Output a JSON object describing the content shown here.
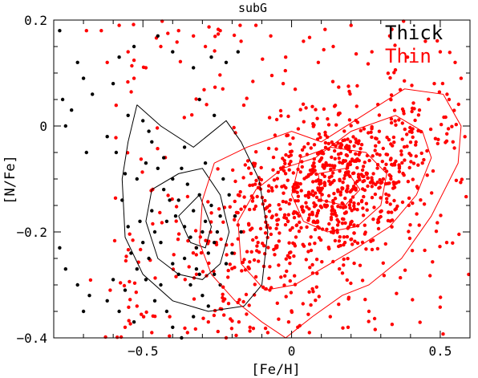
{
  "chart_data": {
    "type": "scatter",
    "title": "subG",
    "xlabel": "[Fe/H]",
    "ylabel": "[N/Fe]",
    "xlim": [
      -0.8,
      0.6
    ],
    "ylim": [
      -0.4,
      0.2
    ],
    "x_ticks": [
      -0.5,
      0,
      0.5
    ],
    "x_tick_labels": [
      "−0.5",
      "0",
      "0.5"
    ],
    "y_ticks": [
      -0.4,
      -0.2,
      0,
      0.2
    ],
    "y_tick_labels": [
      "−0.4",
      "−0.2",
      "0",
      "0.2"
    ],
    "grid": false,
    "legend_position": "top-right",
    "series": [
      {
        "name": "Thick",
        "color": "#000000",
        "points": [
          [
            -0.78,
            0.18
          ],
          [
            -0.72,
            0.12
          ],
          [
            -0.7,
            0.09
          ],
          [
            -0.77,
            0.05
          ],
          [
            -0.74,
            0.03
          ],
          [
            -0.67,
            0.06
          ],
          [
            -0.76,
            0.0
          ],
          [
            -0.69,
            -0.05
          ],
          [
            -0.62,
            -0.02
          ],
          [
            -0.59,
            -0.05
          ],
          [
            -0.56,
            -0.09
          ],
          [
            -0.57,
            -0.14
          ],
          [
            -0.52,
            -0.1
          ],
          [
            -0.49,
            -0.07
          ],
          [
            -0.47,
            -0.03
          ],
          [
            -0.45,
            -0.08
          ],
          [
            -0.43,
            -0.12
          ],
          [
            -0.4,
            -0.1
          ],
          [
            -0.38,
            -0.14
          ],
          [
            -0.35,
            -0.11
          ],
          [
            -0.33,
            -0.16
          ],
          [
            -0.31,
            -0.13
          ],
          [
            -0.29,
            -0.18
          ],
          [
            -0.27,
            -0.15
          ],
          [
            -0.25,
            -0.2
          ],
          [
            -0.36,
            -0.19
          ],
          [
            -0.34,
            -0.21
          ],
          [
            -0.32,
            -0.23
          ],
          [
            -0.3,
            -0.2
          ],
          [
            -0.28,
            -0.24
          ],
          [
            -0.42,
            -0.18
          ],
          [
            -0.44,
            -0.22
          ],
          [
            -0.46,
            -0.2
          ],
          [
            -0.48,
            -0.25
          ],
          [
            -0.5,
            -0.22
          ],
          [
            -0.52,
            -0.27
          ],
          [
            -0.54,
            -0.24
          ],
          [
            -0.4,
            -0.26
          ],
          [
            -0.38,
            -0.28
          ],
          [
            -0.36,
            -0.25
          ],
          [
            -0.34,
            -0.3
          ],
          [
            -0.32,
            -0.27
          ],
          [
            -0.3,
            -0.32
          ],
          [
            -0.26,
            -0.28
          ],
          [
            -0.24,
            -0.3
          ],
          [
            -0.22,
            -0.26
          ],
          [
            -0.2,
            -0.24
          ],
          [
            -0.44,
            -0.3
          ],
          [
            -0.46,
            -0.33
          ],
          [
            -0.42,
            -0.35
          ],
          [
            -0.4,
            -0.38
          ],
          [
            -0.37,
            -0.4
          ],
          [
            -0.56,
            -0.31
          ],
          [
            -0.58,
            -0.35
          ],
          [
            -0.6,
            -0.29
          ],
          [
            -0.72,
            -0.3
          ],
          [
            -0.68,
            -0.32
          ],
          [
            -0.7,
            -0.35
          ],
          [
            -0.76,
            -0.27
          ],
          [
            -0.78,
            -0.23
          ],
          [
            -0.55,
            0.02
          ],
          [
            -0.5,
            0.01
          ],
          [
            -0.48,
            -0.01
          ],
          [
            -0.6,
            0.08
          ],
          [
            -0.58,
            0.13
          ],
          [
            -0.53,
            0.15
          ],
          [
            -0.45,
            0.17
          ],
          [
            -0.4,
            0.14
          ],
          [
            -0.33,
            0.11
          ],
          [
            -0.27,
            0.13
          ],
          [
            -0.22,
            0.12
          ],
          [
            -0.18,
            0.14
          ],
          [
            -0.31,
            0.05
          ],
          [
            -0.26,
            0.02
          ],
          [
            -0.36,
            -0.04
          ],
          [
            -0.29,
            -0.07
          ],
          [
            -0.23,
            -0.1
          ],
          [
            -0.21,
            -0.13
          ],
          [
            -0.19,
            -0.17
          ],
          [
            -0.17,
            -0.2
          ],
          [
            -0.41,
            -0.14
          ],
          [
            -0.39,
            -0.17
          ],
          [
            -0.47,
            -0.16
          ],
          [
            -0.51,
            -0.18
          ],
          [
            -0.55,
            -0.19
          ],
          [
            -0.26,
            -0.22
          ],
          [
            -0.24,
            -0.17
          ],
          [
            -0.31,
            -0.28
          ],
          [
            -0.28,
            -0.34
          ],
          [
            -0.33,
            -0.36
          ],
          [
            -0.49,
            -0.29
          ],
          [
            -0.53,
            -0.37
          ],
          [
            -0.62,
            -0.33
          ],
          [
            -0.43,
            -0.06
          ],
          [
            -0.37,
            -0.08
          ]
        ]
      },
      {
        "name": "Thin",
        "color": "#ff0000",
        "generated_count": 1050,
        "points": [
          [
            -0.69,
            0.18
          ],
          [
            -0.64,
            0.18
          ],
          [
            -0.58,
            0.19
          ],
          [
            -0.55,
            0.14
          ],
          [
            -0.62,
            0.12
          ],
          [
            -0.53,
            0.09
          ],
          [
            -0.49,
            0.11
          ],
          [
            -0.44,
            0.15
          ],
          [
            -0.38,
            0.18
          ],
          [
            -0.33,
            0.17
          ],
          [
            -0.29,
            0.15
          ],
          [
            -0.24,
            0.18
          ],
          [
            -0.17,
            0.16
          ],
          [
            -0.12,
            0.19
          ],
          [
            -0.07,
            0.17
          ],
          [
            -0.02,
            0.13
          ],
          [
            0.04,
            0.16
          ],
          [
            0.09,
            0.12
          ],
          [
            0.14,
            0.15
          ],
          [
            0.2,
            0.19
          ],
          [
            0.27,
            0.14
          ],
          [
            0.33,
            0.17
          ],
          [
            0.39,
            0.13
          ],
          [
            0.45,
            0.16
          ],
          [
            0.5,
            0.14
          ],
          [
            0.55,
            0.12
          ],
          [
            0.57,
            0.09
          ],
          [
            0.53,
            0.05
          ],
          [
            0.48,
            0.08
          ],
          [
            0.43,
            0.03
          ],
          [
            -0.61,
            -0.31
          ],
          [
            -0.56,
            -0.38
          ],
          [
            -0.52,
            -0.34
          ],
          [
            -0.47,
            -0.39
          ],
          [
            -0.41,
            -0.36
          ],
          [
            -0.35,
            -0.39
          ],
          [
            -0.28,
            -0.37
          ],
          [
            -0.22,
            -0.4
          ],
          [
            -0.14,
            -0.38
          ],
          [
            -0.08,
            -0.39
          ],
          [
            -0.01,
            -0.37
          ],
          [
            0.06,
            -0.39
          ],
          [
            0.13,
            -0.36
          ],
          [
            0.19,
            -0.38
          ],
          [
            0.26,
            -0.35
          ]
        ]
      }
    ],
    "contours": [
      {
        "series": "Thick",
        "color": "#000000",
        "levels": [
          [
            [
              -0.52,
              0.04
            ],
            [
              -0.44,
              0.0
            ],
            [
              -0.33,
              -0.04
            ],
            [
              -0.22,
              0.01
            ],
            [
              -0.17,
              -0.03
            ],
            [
              -0.11,
              -0.1
            ],
            [
              -0.08,
              -0.2
            ],
            [
              -0.1,
              -0.3
            ],
            [
              -0.16,
              -0.34
            ],
            [
              -0.28,
              -0.35
            ],
            [
              -0.4,
              -0.33
            ],
            [
              -0.5,
              -0.28
            ],
            [
              -0.56,
              -0.21
            ],
            [
              -0.57,
              -0.1
            ],
            [
              -0.55,
              -0.03
            ],
            [
              -0.52,
              0.04
            ]
          ],
          [
            [
              -0.47,
              -0.12
            ],
            [
              -0.38,
              -0.09
            ],
            [
              -0.3,
              -0.08
            ],
            [
              -0.24,
              -0.13
            ],
            [
              -0.21,
              -0.2
            ],
            [
              -0.24,
              -0.26
            ],
            [
              -0.3,
              -0.29
            ],
            [
              -0.38,
              -0.28
            ],
            [
              -0.45,
              -0.25
            ],
            [
              -0.49,
              -0.18
            ],
            [
              -0.47,
              -0.12
            ]
          ],
          [
            [
              -0.38,
              -0.17
            ],
            [
              -0.31,
              -0.13
            ],
            [
              -0.27,
              -0.19
            ],
            [
              -0.29,
              -0.23
            ],
            [
              -0.34,
              -0.22
            ],
            [
              -0.38,
              -0.17
            ]
          ]
        ]
      },
      {
        "series": "Thin",
        "color": "#ff0000",
        "levels": [
          [
            [
              -0.26,
              -0.07
            ],
            [
              -0.15,
              -0.04
            ],
            [
              0.0,
              -0.01
            ],
            [
              0.1,
              -0.03
            ],
            [
              0.24,
              0.02
            ],
            [
              0.38,
              0.07
            ],
            [
              0.51,
              0.06
            ],
            [
              0.57,
              0.0
            ],
            [
              0.56,
              -0.07
            ],
            [
              0.47,
              -0.17
            ],
            [
              0.37,
              -0.25
            ],
            [
              0.26,
              -0.3
            ],
            [
              0.17,
              -0.32
            ],
            [
              0.07,
              -0.36
            ],
            [
              -0.02,
              -0.4
            ],
            [
              -0.1,
              -0.37
            ],
            [
              -0.19,
              -0.33
            ],
            [
              -0.27,
              -0.28
            ],
            [
              -0.31,
              -0.22
            ],
            [
              -0.3,
              -0.14
            ],
            [
              -0.26,
              -0.07
            ]
          ],
          [
            [
              0.08,
              -0.06
            ],
            [
              0.2,
              -0.01
            ],
            [
              0.35,
              0.02
            ],
            [
              0.44,
              -0.01
            ],
            [
              0.47,
              -0.06
            ],
            [
              0.42,
              -0.13
            ],
            [
              0.33,
              -0.19
            ],
            [
              0.22,
              -0.23
            ],
            [
              0.1,
              -0.27
            ],
            [
              0.01,
              -0.3
            ],
            [
              -0.09,
              -0.31
            ],
            [
              -0.17,
              -0.26
            ],
            [
              -0.18,
              -0.18
            ],
            [
              -0.12,
              -0.12
            ],
            [
              -0.03,
              -0.08
            ],
            [
              0.08,
              -0.06
            ]
          ],
          [
            [
              0.03,
              -0.06
            ],
            [
              0.13,
              -0.04
            ],
            [
              0.25,
              -0.05
            ],
            [
              0.32,
              -0.09
            ],
            [
              0.3,
              -0.15
            ],
            [
              0.22,
              -0.19
            ],
            [
              0.12,
              -0.2
            ],
            [
              0.04,
              -0.18
            ],
            [
              0.0,
              -0.13
            ],
            [
              0.03,
              -0.06
            ]
          ],
          [
            [
              0.09,
              -0.09
            ],
            [
              0.18,
              -0.08
            ],
            [
              0.23,
              -0.12
            ],
            [
              0.18,
              -0.15
            ],
            [
              0.1,
              -0.14
            ],
            [
              0.09,
              -0.09
            ]
          ]
        ]
      }
    ]
  }
}
